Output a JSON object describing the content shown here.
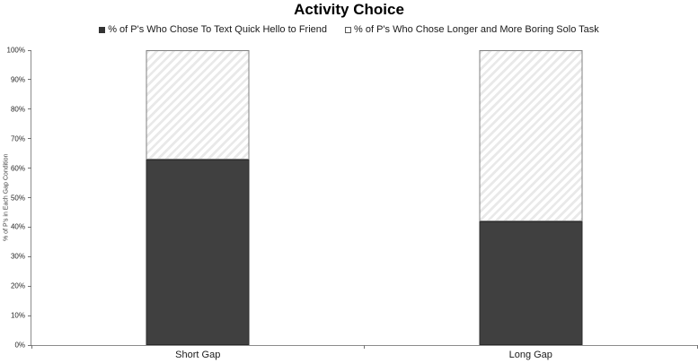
{
  "chart_data": {
    "type": "bar",
    "stacked": true,
    "title": "Activity Choice",
    "categories": [
      "Short Gap",
      "Long Gap"
    ],
    "series": [
      {
        "name": "% of P's Who Chose To Text Quick Hello to Friend",
        "values": [
          63,
          42
        ],
        "fill": "solid",
        "color": "#404040"
      },
      {
        "name": "% of P's Who Chose Longer and More Boring Solo Task",
        "values": [
          37,
          58
        ],
        "fill": "hatch",
        "color": "#e9e9e9"
      }
    ],
    "xlabel": "",
    "ylabel": "% of P's in Each Gap Condition",
    "ylim": [
      0,
      100
    ],
    "ytick_step": 10,
    "ytick_labels": [
      "0%",
      "10%",
      "20%",
      "30%",
      "40%",
      "50%",
      "60%",
      "70%",
      "80%",
      "90%",
      "100%"
    ],
    "grid": false,
    "legend_position": "top"
  },
  "colors": {
    "bar_dark": "#404040",
    "axis_line": "#8c8c8c",
    "tick": "#737373",
    "text": "#1a1a1a"
  }
}
